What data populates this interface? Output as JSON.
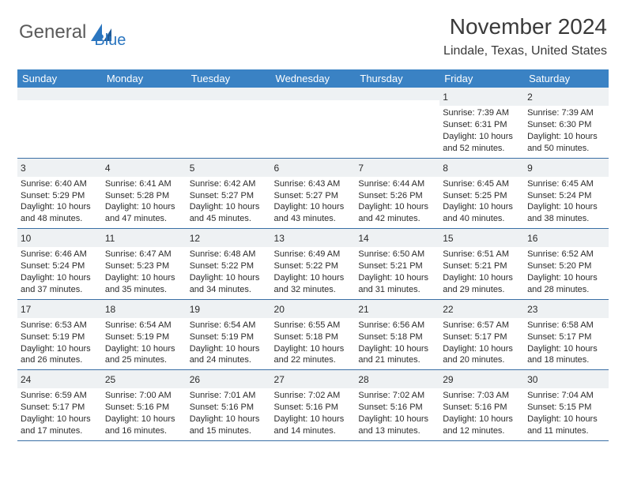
{
  "logo": {
    "text1": "General",
    "text2": "Blue"
  },
  "header": {
    "month": "November 2024",
    "location": "Lindale, Texas, United States"
  },
  "dayNames": [
    "Sunday",
    "Monday",
    "Tuesday",
    "Wednesday",
    "Thursday",
    "Friday",
    "Saturday"
  ],
  "colors": {
    "headerBg": "#3a82c4",
    "headerText": "#ffffff",
    "blankRow": "#eef1f3",
    "rowBorder": "#3a6fa5",
    "logoGray": "#5a5a5a",
    "logoBlue": "#2b76c0"
  },
  "weeks": [
    [
      null,
      null,
      null,
      null,
      null,
      {
        "n": "1",
        "sr": "Sunrise: 7:39 AM",
        "ss": "Sunset: 6:31 PM",
        "d1": "Daylight: 10 hours",
        "d2": "and 52 minutes."
      },
      {
        "n": "2",
        "sr": "Sunrise: 7:39 AM",
        "ss": "Sunset: 6:30 PM",
        "d1": "Daylight: 10 hours",
        "d2": "and 50 minutes."
      }
    ],
    [
      {
        "n": "3",
        "sr": "Sunrise: 6:40 AM",
        "ss": "Sunset: 5:29 PM",
        "d1": "Daylight: 10 hours",
        "d2": "and 48 minutes."
      },
      {
        "n": "4",
        "sr": "Sunrise: 6:41 AM",
        "ss": "Sunset: 5:28 PM",
        "d1": "Daylight: 10 hours",
        "d2": "and 47 minutes."
      },
      {
        "n": "5",
        "sr": "Sunrise: 6:42 AM",
        "ss": "Sunset: 5:27 PM",
        "d1": "Daylight: 10 hours",
        "d2": "and 45 minutes."
      },
      {
        "n": "6",
        "sr": "Sunrise: 6:43 AM",
        "ss": "Sunset: 5:27 PM",
        "d1": "Daylight: 10 hours",
        "d2": "and 43 minutes."
      },
      {
        "n": "7",
        "sr": "Sunrise: 6:44 AM",
        "ss": "Sunset: 5:26 PM",
        "d1": "Daylight: 10 hours",
        "d2": "and 42 minutes."
      },
      {
        "n": "8",
        "sr": "Sunrise: 6:45 AM",
        "ss": "Sunset: 5:25 PM",
        "d1": "Daylight: 10 hours",
        "d2": "and 40 minutes."
      },
      {
        "n": "9",
        "sr": "Sunrise: 6:45 AM",
        "ss": "Sunset: 5:24 PM",
        "d1": "Daylight: 10 hours",
        "d2": "and 38 minutes."
      }
    ],
    [
      {
        "n": "10",
        "sr": "Sunrise: 6:46 AM",
        "ss": "Sunset: 5:24 PM",
        "d1": "Daylight: 10 hours",
        "d2": "and 37 minutes."
      },
      {
        "n": "11",
        "sr": "Sunrise: 6:47 AM",
        "ss": "Sunset: 5:23 PM",
        "d1": "Daylight: 10 hours",
        "d2": "and 35 minutes."
      },
      {
        "n": "12",
        "sr": "Sunrise: 6:48 AM",
        "ss": "Sunset: 5:22 PM",
        "d1": "Daylight: 10 hours",
        "d2": "and 34 minutes."
      },
      {
        "n": "13",
        "sr": "Sunrise: 6:49 AM",
        "ss": "Sunset: 5:22 PM",
        "d1": "Daylight: 10 hours",
        "d2": "and 32 minutes."
      },
      {
        "n": "14",
        "sr": "Sunrise: 6:50 AM",
        "ss": "Sunset: 5:21 PM",
        "d1": "Daylight: 10 hours",
        "d2": "and 31 minutes."
      },
      {
        "n": "15",
        "sr": "Sunrise: 6:51 AM",
        "ss": "Sunset: 5:21 PM",
        "d1": "Daylight: 10 hours",
        "d2": "and 29 minutes."
      },
      {
        "n": "16",
        "sr": "Sunrise: 6:52 AM",
        "ss": "Sunset: 5:20 PM",
        "d1": "Daylight: 10 hours",
        "d2": "and 28 minutes."
      }
    ],
    [
      {
        "n": "17",
        "sr": "Sunrise: 6:53 AM",
        "ss": "Sunset: 5:19 PM",
        "d1": "Daylight: 10 hours",
        "d2": "and 26 minutes."
      },
      {
        "n": "18",
        "sr": "Sunrise: 6:54 AM",
        "ss": "Sunset: 5:19 PM",
        "d1": "Daylight: 10 hours",
        "d2": "and 25 minutes."
      },
      {
        "n": "19",
        "sr": "Sunrise: 6:54 AM",
        "ss": "Sunset: 5:19 PM",
        "d1": "Daylight: 10 hours",
        "d2": "and 24 minutes."
      },
      {
        "n": "20",
        "sr": "Sunrise: 6:55 AM",
        "ss": "Sunset: 5:18 PM",
        "d1": "Daylight: 10 hours",
        "d2": "and 22 minutes."
      },
      {
        "n": "21",
        "sr": "Sunrise: 6:56 AM",
        "ss": "Sunset: 5:18 PM",
        "d1": "Daylight: 10 hours",
        "d2": "and 21 minutes."
      },
      {
        "n": "22",
        "sr": "Sunrise: 6:57 AM",
        "ss": "Sunset: 5:17 PM",
        "d1": "Daylight: 10 hours",
        "d2": "and 20 minutes."
      },
      {
        "n": "23",
        "sr": "Sunrise: 6:58 AM",
        "ss": "Sunset: 5:17 PM",
        "d1": "Daylight: 10 hours",
        "d2": "and 18 minutes."
      }
    ],
    [
      {
        "n": "24",
        "sr": "Sunrise: 6:59 AM",
        "ss": "Sunset: 5:17 PM",
        "d1": "Daylight: 10 hours",
        "d2": "and 17 minutes."
      },
      {
        "n": "25",
        "sr": "Sunrise: 7:00 AM",
        "ss": "Sunset: 5:16 PM",
        "d1": "Daylight: 10 hours",
        "d2": "and 16 minutes."
      },
      {
        "n": "26",
        "sr": "Sunrise: 7:01 AM",
        "ss": "Sunset: 5:16 PM",
        "d1": "Daylight: 10 hours",
        "d2": "and 15 minutes."
      },
      {
        "n": "27",
        "sr": "Sunrise: 7:02 AM",
        "ss": "Sunset: 5:16 PM",
        "d1": "Daylight: 10 hours",
        "d2": "and 14 minutes."
      },
      {
        "n": "28",
        "sr": "Sunrise: 7:02 AM",
        "ss": "Sunset: 5:16 PM",
        "d1": "Daylight: 10 hours",
        "d2": "and 13 minutes."
      },
      {
        "n": "29",
        "sr": "Sunrise: 7:03 AM",
        "ss": "Sunset: 5:16 PM",
        "d1": "Daylight: 10 hours",
        "d2": "and 12 minutes."
      },
      {
        "n": "30",
        "sr": "Sunrise: 7:04 AM",
        "ss": "Sunset: 5:15 PM",
        "d1": "Daylight: 10 hours",
        "d2": "and 11 minutes."
      }
    ]
  ]
}
